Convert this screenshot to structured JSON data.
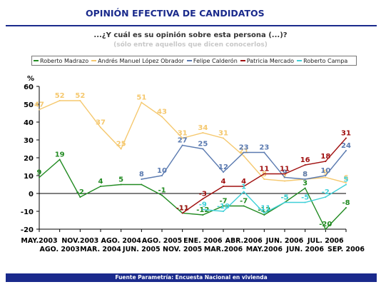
{
  "header": {
    "title": "OPINIÓN EFECTIVA DE CANDIDATOS",
    "question": "...¿Y cuál es su opinión sobre esta persona (...)?",
    "subtitle": "(sólo entre aquellos que dicen conocerlos)"
  },
  "footer": {
    "text": "Fuente Parametría: Encuesta Nacional en vivienda"
  },
  "chart_data": {
    "type": "line",
    "ylabel": "%",
    "ylim": [
      -20,
      60
    ],
    "yticks": [
      -20,
      -10,
      0,
      10,
      20,
      30,
      40,
      50,
      60
    ],
    "categories": [
      "MAY.2003",
      "AGO. 2003",
      "NOV.2003",
      "MAR. 2004",
      "AGO. 2004",
      "JUN. 2005",
      "AGO. 2005",
      "NOV. 2005",
      "ENE. 2006",
      "MAR.2006",
      "ABR.2006",
      "MAY.2006",
      "JUN. 2006",
      "JUN. 2006",
      "JUL. 2006",
      "SEP. 2006"
    ],
    "legend_position": "top",
    "grid": false,
    "series": [
      {
        "name": "Roberto Madrazo",
        "color": "#228b22",
        "values": [
          9,
          19,
          -2,
          4,
          5,
          5,
          -1,
          -11,
          -12,
          -7,
          -7,
          -12,
          -5,
          3,
          -20,
          -8
        ],
        "labels": [
          "9",
          "19",
          "-2",
          "4",
          "5",
          "",
          "-1",
          "-11",
          "-12",
          "-7",
          "-7",
          "-12",
          "-5",
          "3",
          "-20",
          "-8"
        ]
      },
      {
        "name": "Andrés Manuel López Obrador",
        "color": "#f5c86e",
        "values": [
          47,
          52,
          52,
          37,
          25,
          51,
          43,
          31,
          34,
          31,
          21,
          8,
          7,
          8,
          9,
          6
        ],
        "labels": [
          "47",
          "52",
          "52",
          "37",
          "25",
          "51",
          "43",
          "31",
          "34",
          "31",
          "21",
          "8",
          "7",
          "8",
          "9",
          "6"
        ]
      },
      {
        "name": "Felipe Calderón",
        "color": "#5a7ab0",
        "values": [
          null,
          null,
          null,
          null,
          null,
          8,
          10,
          27,
          25,
          12,
          23,
          23,
          9,
          8,
          10,
          24
        ],
        "labels": [
          "",
          "",
          "",
          "",
          "",
          "8",
          "10",
          "27",
          "25",
          "12",
          "23",
          "23",
          "9",
          "8",
          "10",
          "24"
        ]
      },
      {
        "name": "Patricia Mercado",
        "color": "#a01010",
        "values": [
          null,
          null,
          null,
          null,
          null,
          null,
          null,
          -11,
          -3,
          4,
          4,
          11,
          11,
          16,
          18,
          31
        ],
        "labels": [
          "",
          "",
          "",
          "",
          "",
          "",
          "",
          "-11",
          "-3",
          "4",
          "4",
          "11",
          "11",
          "16",
          "18",
          "31"
        ]
      },
      {
        "name": "Roberto Campa",
        "color": "#3fd0d8",
        "values": [
          null,
          null,
          null,
          null,
          null,
          null,
          null,
          null,
          -9,
          -10,
          1,
          -11,
          -5,
          -5,
          -2,
          5
        ],
        "labels": [
          "",
          "",
          "",
          "",
          "",
          "",
          "",
          "",
          "-9",
          "-10",
          "1",
          "-11",
          "-5",
          "-5",
          "-2",
          "5"
        ]
      }
    ]
  }
}
